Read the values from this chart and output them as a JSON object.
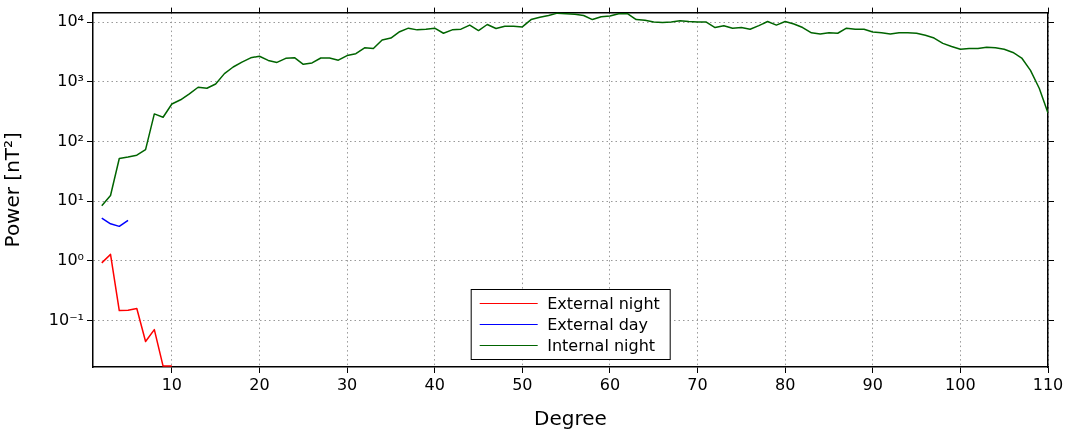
{
  "chart_data": {
    "type": "line",
    "xlabel": "Degree",
    "ylabel": "Power [nT²]",
    "log": "y",
    "grid": true,
    "legend": "bottom",
    "xlim": [
      1,
      110
    ],
    "xticks": [
      10,
      20,
      30,
      40,
      50,
      60,
      70,
      80,
      90,
      100,
      110
    ],
    "ylim": [
      0.0168,
      14400
    ],
    "yticks": [
      {
        "value": 0.1,
        "label": "10⁻¹"
      },
      {
        "value": 1,
        "label": "10⁰"
      },
      {
        "value": 10,
        "label": "10¹"
      },
      {
        "value": 100,
        "label": "10²"
      },
      {
        "value": 1000,
        "label": "10³"
      },
      {
        "value": 10000,
        "label": "10⁴"
      }
    ],
    "series": [
      {
        "name": "External night",
        "color": "#ff0000",
        "x": [
          2,
          3,
          4,
          5,
          6,
          7,
          8,
          9,
          10
        ],
        "values": [
          0.93,
          1.29,
          0.148,
          0.15,
          0.16,
          0.045,
          0.071,
          0.0174,
          0.0175
        ]
      },
      {
        "name": "External day",
        "color": "#0000ff",
        "x": [
          2,
          3,
          4,
          5
        ],
        "values": [
          5.2,
          4.2,
          3.8,
          4.8
        ]
      },
      {
        "name": "Internal night",
        "color": "#006400",
        "x": [
          2,
          3,
          4,
          5,
          6,
          7,
          8,
          9,
          10,
          11,
          12,
          13,
          14,
          15,
          16,
          17,
          18,
          19,
          20,
          21,
          22,
          23,
          24,
          25,
          26,
          27,
          28,
          29,
          30,
          31,
          32,
          33,
          34,
          35,
          36,
          37,
          38,
          39,
          40,
          41,
          42,
          43,
          44,
          45,
          46,
          47,
          48,
          49,
          50,
          51,
          52,
          53,
          54,
          55,
          56,
          57,
          58,
          59,
          60,
          61,
          62,
          63,
          64,
          65,
          66,
          67,
          68,
          69,
          70,
          71,
          72,
          73,
          74,
          75,
          76,
          77,
          78,
          79,
          80,
          81,
          82,
          83,
          84,
          85,
          86,
          87,
          88,
          89,
          90,
          91,
          92,
          93,
          94,
          95,
          96,
          97,
          98,
          99,
          100,
          101,
          102,
          103,
          104,
          105,
          106,
          107,
          108,
          109,
          110
        ],
        "values": [
          8.4,
          12.5,
          52,
          55,
          59,
          73,
          290,
          255,
          425,
          500,
          630,
          810,
          780,
          920,
          1370,
          1770,
          2140,
          2520,
          2680,
          2280,
          2110,
          2470,
          2530,
          1960,
          2070,
          2500,
          2500,
          2300,
          2750,
          2950,
          3700,
          3600,
          5000,
          5400,
          6900,
          7900,
          7400,
          7600,
          7900,
          6500,
          7400,
          7600,
          8900,
          7200,
          9100,
          7800,
          8500,
          8500,
          8300,
          11000,
          12000,
          12900,
          14100,
          13800,
          13500,
          12900,
          11000,
          12300,
          12600,
          13800,
          13800,
          11000,
          10700,
          10000,
          9800,
          10000,
          10500,
          10200,
          10000,
          10000,
          8100,
          8700,
          7900,
          8100,
          7600,
          8700,
          10200,
          8900,
          10200,
          9300,
          8100,
          6600,
          6300,
          6600,
          6500,
          7900,
          7600,
          7600,
          6800,
          6600,
          6300,
          6600,
          6600,
          6500,
          6000,
          5400,
          4400,
          3900,
          3500,
          3600,
          3600,
          3800,
          3700,
          3500,
          3100,
          2500,
          1550,
          780,
          300
        ]
      }
    ]
  }
}
